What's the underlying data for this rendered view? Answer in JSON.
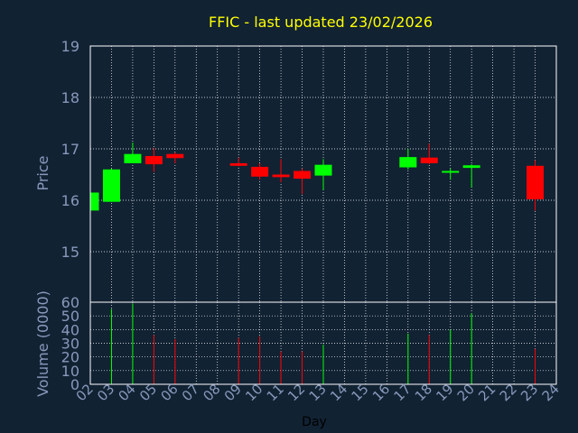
{
  "chart_data": {
    "type": "candlestick",
    "title": "FFIC - last updated 23/02/2026",
    "xlabel": "Day",
    "x_ticks": [
      "02",
      "03",
      "04",
      "05",
      "06",
      "07",
      "08",
      "09",
      "10",
      "11",
      "12",
      "13",
      "14",
      "15",
      "16",
      "17",
      "18",
      "19",
      "20",
      "21",
      "22",
      "23",
      "24"
    ],
    "price_panel": {
      "ylabel": "Price",
      "ylim": [
        15,
        19
      ],
      "y_ticks": [
        "15",
        "16",
        "17",
        "18",
        "19"
      ],
      "grid": true
    },
    "volume_panel": {
      "ylabel": "Volume (0000)",
      "ylim": [
        0,
        60
      ],
      "y_ticks": [
        "0",
        "10",
        "20",
        "30",
        "40",
        "50",
        "60"
      ],
      "grid": true
    },
    "colors": {
      "background": "#112233",
      "axis": "#ffffff",
      "tick_text": "#8899bb",
      "title": "#ffff00",
      "up": "#00ff00",
      "down": "#ff0000"
    },
    "candles": [
      {
        "day": "02",
        "open": 15.8,
        "high": 16.15,
        "low": 15.8,
        "close": 16.15,
        "volume": 0
      },
      {
        "day": "03",
        "open": 15.97,
        "high": 16.62,
        "low": 15.97,
        "close": 16.6,
        "volume": 55
      },
      {
        "day": "04",
        "open": 16.72,
        "high": 17.12,
        "low": 16.72,
        "close": 16.9,
        "volume": 59
      },
      {
        "day": "05",
        "open": 16.86,
        "high": 17.02,
        "low": 16.55,
        "close": 16.7,
        "volume": 36
      },
      {
        "day": "06",
        "open": 16.9,
        "high": 16.93,
        "low": 16.72,
        "close": 16.82,
        "volume": 33
      },
      {
        "day": "09",
        "open": 16.72,
        "high": 16.83,
        "low": 16.66,
        "close": 16.67,
        "volume": 34
      },
      {
        "day": "10",
        "open": 16.65,
        "high": 16.72,
        "low": 16.4,
        "close": 16.46,
        "volume": 35
      },
      {
        "day": "11",
        "open": 16.5,
        "high": 16.8,
        "low": 16.35,
        "close": 16.45,
        "volume": 24
      },
      {
        "day": "12",
        "open": 16.57,
        "high": 16.62,
        "low": 16.12,
        "close": 16.42,
        "volume": 24
      },
      {
        "day": "13",
        "open": 16.48,
        "high": 16.8,
        "low": 16.2,
        "close": 16.69,
        "volume": 29
      },
      {
        "day": "17",
        "open": 16.64,
        "high": 17.0,
        "low": 16.6,
        "close": 16.84,
        "volume": 37
      },
      {
        "day": "18",
        "open": 16.83,
        "high": 17.1,
        "low": 16.7,
        "close": 16.72,
        "volume": 36
      },
      {
        "day": "19",
        "open": 16.54,
        "high": 16.62,
        "low": 16.4,
        "close": 16.57,
        "volume": 40
      },
      {
        "day": "20",
        "open": 16.63,
        "high": 16.7,
        "low": 16.25,
        "close": 16.68,
        "volume": 52
      },
      {
        "day": "23",
        "open": 16.67,
        "high": 16.78,
        "low": 15.8,
        "close": 16.02,
        "volume": 26
      }
    ]
  }
}
